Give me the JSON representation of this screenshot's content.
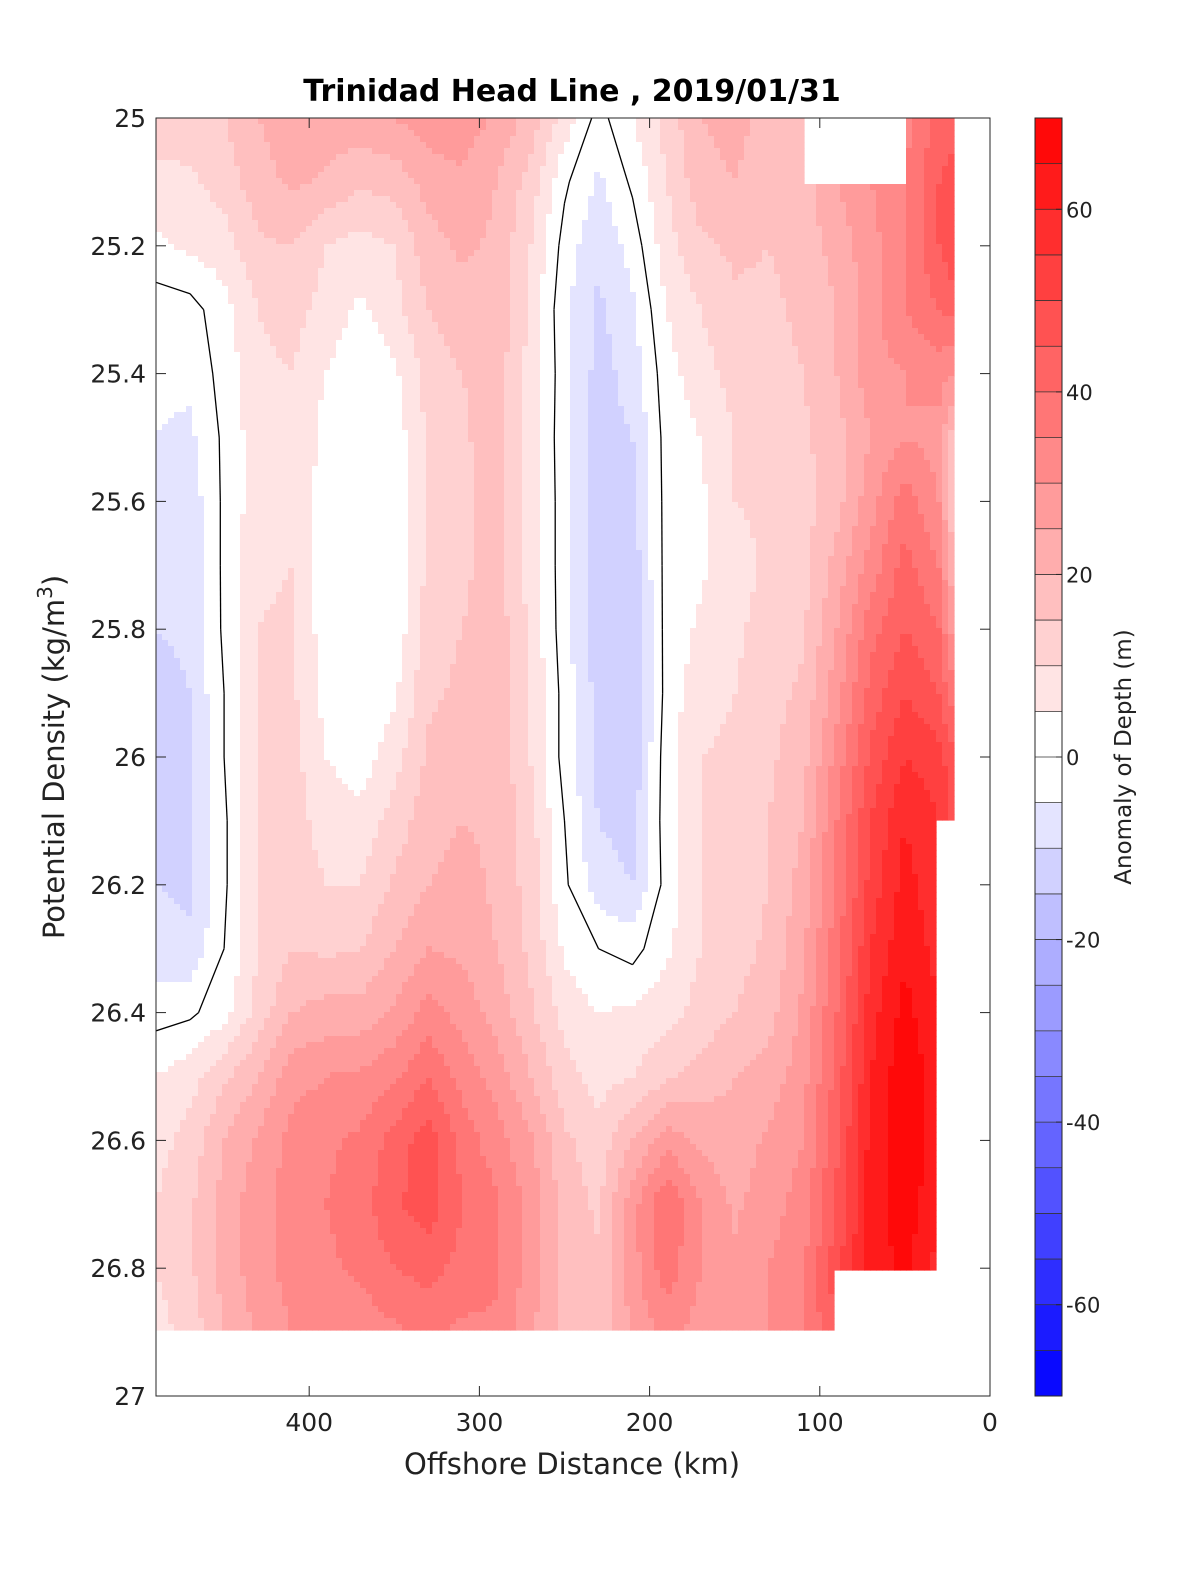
{
  "chart_data": {
    "type": "heatmap",
    "title": "Trinidad Head Line , 2019/01/31",
    "xlabel": "Offshore Distance (km)",
    "ylabel": "Potential Density (kg/m",
    "ylabel_sup": "3",
    "ylabel_close": ")",
    "xlim": [
      490,
      0
    ],
    "ylim": [
      25,
      27
    ],
    "x_reversed": true,
    "y_reversed": true,
    "xticks": [
      400,
      300,
      200,
      100,
      0
    ],
    "yticks": [
      25,
      25.2,
      25.4,
      25.6,
      25.8,
      26,
      26.2,
      26.4,
      26.6,
      26.8,
      27
    ],
    "x": [
      490,
      470,
      450,
      430,
      410,
      390,
      370,
      350,
      330,
      310,
      290,
      270,
      250,
      230,
      210,
      190,
      170,
      150,
      130,
      110,
      90,
      70,
      50,
      30,
      20
    ],
    "y": [
      25,
      25.1,
      25.2,
      25.3,
      25.4,
      25.5,
      25.6,
      25.7,
      25.8,
      25.9,
      26,
      26.1,
      26.2,
      26.3,
      26.4,
      26.5,
      26.6,
      26.7,
      26.8,
      26.9
    ],
    "z": [
      [
        13,
        13,
        15,
        20,
        23,
        23,
        23,
        25,
        28,
        28,
        24,
        18,
        8,
        -2,
        5,
        12,
        20,
        22,
        18,
        18,
        null,
        null,
        33,
        42,
        42
      ],
      [
        8,
        9,
        12,
        18,
        21,
        19,
        16,
        17,
        22,
        24,
        20,
        13,
        1,
        -6,
        1,
        10,
        18,
        20,
        16,
        18,
        25,
        30,
        35,
        45,
        48
      ],
      [
        4,
        6,
        8,
        14,
        15,
        10,
        8,
        10,
        18,
        21,
        19,
        10,
        -2,
        -9,
        -3,
        8,
        14,
        16,
        15,
        17,
        22,
        28,
        35,
        45,
        50
      ],
      [
        -3,
        -2,
        3,
        10,
        12,
        8,
        4,
        8,
        15,
        18,
        18,
        9,
        -4,
        -11,
        -6,
        5,
        10,
        14,
        14,
        16,
        20,
        28,
        35,
        40,
        42
      ],
      [
        -4,
        -4,
        2,
        9,
        10,
        5,
        1,
        4,
        12,
        15,
        18,
        8,
        -3,
        -12,
        -8,
        3,
        8,
        12,
        13,
        15,
        20,
        28,
        30,
        32,
        30
      ],
      [
        -5,
        -6,
        1,
        8,
        10,
        3,
        0,
        2,
        11,
        14,
        18,
        7,
        -3,
        -12,
        -10,
        2,
        5,
        10,
        12,
        14,
        18,
        25,
        30,
        28,
        15
      ],
      [
        -6,
        -8,
        1,
        8,
        10,
        2,
        0,
        1,
        10,
        14,
        17,
        8,
        -3,
        -13,
        -12,
        2,
        4,
        10,
        11,
        13,
        18,
        28,
        38,
        30,
        12
      ],
      [
        -8,
        -8,
        1,
        9,
        10,
        1,
        0,
        1,
        11,
        14,
        17,
        8,
        -3,
        -13,
        -13,
        2,
        4,
        8,
        11,
        13,
        22,
        32,
        42,
        35,
        18
      ],
      [
        -10,
        -9,
        1,
        10,
        11,
        2,
        0,
        1,
        13,
        15,
        18,
        9,
        -3,
        -13,
        -14,
        2,
        6,
        9,
        12,
        14,
        25,
        38,
        45,
        40,
        25
      ],
      [
        -12,
        -10,
        0,
        10,
        11,
        3,
        0,
        4,
        14,
        16,
        19,
        10,
        -2,
        -12,
        -15,
        2,
        8,
        10,
        13,
        16,
        28,
        42,
        50,
        45,
        35
      ],
      [
        -12,
        -11,
        0,
        10,
        12,
        5,
        2,
        8,
        16,
        18,
        19,
        10,
        -2,
        -12,
        -14,
        3,
        10,
        11,
        14,
        18,
        32,
        46,
        55,
        52,
        45
      ],
      [
        -12,
        -11,
        -1,
        10,
        12,
        8,
        7,
        12,
        18,
        20,
        19,
        12,
        0,
        -10,
        -12,
        3,
        10,
        12,
        15,
        20,
        35,
        50,
        60,
        55,
        48
      ],
      [
        -10,
        -11,
        -1,
        10,
        13,
        10,
        10,
        16,
        20,
        22,
        19,
        13,
        1,
        -8,
        -10,
        2,
        10,
        12,
        15,
        22,
        36,
        52,
        62,
        56,
        null
      ],
      [
        -8,
        -9,
        0,
        10,
        15,
        14,
        15,
        20,
        25,
        24,
        20,
        14,
        4,
        0,
        -2,
        4,
        10,
        13,
        16,
        24,
        38,
        55,
        64,
        58,
        null
      ],
      [
        -2,
        -1,
        3,
        12,
        20,
        22,
        22,
        26,
        32,
        28,
        23,
        16,
        8,
        5,
        6,
        8,
        12,
        15,
        18,
        26,
        40,
        58,
        67,
        60,
        null
      ],
      [
        5,
        8,
        14,
        20,
        28,
        30,
        31,
        34,
        40,
        33,
        28,
        20,
        12,
        8,
        10,
        14,
        17,
        20,
        22,
        28,
        42,
        60,
        69,
        62,
        null
      ],
      [
        8,
        12,
        20,
        26,
        32,
        34,
        36,
        42,
        48,
        38,
        32,
        26,
        16,
        12,
        20,
        28,
        24,
        22,
        26,
        30,
        44,
        62,
        69,
        62,
        null
      ],
      [
        10,
        14,
        22,
        28,
        32,
        35,
        38,
        44,
        48,
        40,
        36,
        28,
        18,
        14,
        28,
        40,
        30,
        24,
        28,
        32,
        46,
        62,
        69,
        60,
        null
      ],
      [
        10,
        14,
        22,
        28,
        32,
        34,
        36,
        40,
        42,
        38,
        36,
        28,
        18,
        16,
        28,
        38,
        30,
        26,
        30,
        34,
        48,
        62,
        66,
        58,
        null
      ],
      [
        8,
        12,
        20,
        26,
        30,
        30,
        32,
        34,
        36,
        34,
        34,
        26,
        18,
        16,
        26,
        32,
        28,
        26,
        30,
        34,
        46,
        null,
        null,
        null,
        null
      ]
    ],
    "contour_levels_step": 5,
    "contour_line_level": 0,
    "clim": [
      -70,
      70
    ],
    "colormap": "blue-white-red",
    "colorbar": {
      "label": "Anomaly of Depth (m)",
      "ticks": [
        60,
        40,
        20,
        0,
        -20,
        -40,
        -60
      ],
      "placement": "right"
    },
    "grid": false
  },
  "colors": {
    "negative": "#0000ff",
    "neutral": "#ffffff",
    "positive": "#ff0000",
    "axis": "#262626",
    "contour_line": "#000000"
  }
}
